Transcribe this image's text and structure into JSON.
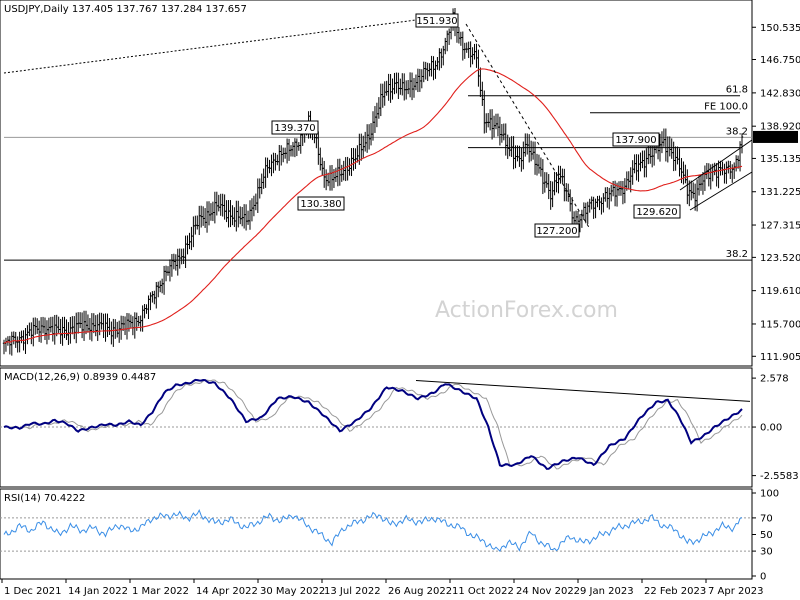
{
  "chart_data": [
    {
      "type": "candlestick",
      "panel": "price",
      "title": "USDJPY,Daily  137.405 137.767 137.284 137.657",
      "watermark": "ActionForex.com",
      "ylim": [
        111.0,
        153.5
      ],
      "yticks": [
        "150.535",
        "146.750",
        "142.830",
        "138.920",
        "135.135",
        "131.225",
        "127.315",
        "123.520",
        "119.610",
        "115.700",
        "111.905"
      ],
      "ytick_values": [
        150.535,
        146.75,
        142.83,
        138.92,
        135.135,
        131.225,
        127.315,
        123.52,
        119.61,
        115.7,
        111.905
      ],
      "last_price_label": "137.657",
      "last_price": 137.657,
      "xticks": [
        "1 Dec 2021",
        "14 Jan 2022",
        "1 Mar 2022",
        "14 Apr 2022",
        "30 May 2022",
        "13 Jul 2022",
        "26 Aug 2022",
        "11 Oct 2022",
        "24 Nov 2022",
        "9 Jan 2023",
        "22 Feb 2023",
        "7 Apr 2023"
      ],
      "close_series_anchors": [
        [
          0,
          113.2
        ],
        [
          10,
          114.3
        ],
        [
          20,
          115.4
        ],
        [
          28,
          114.8
        ],
        [
          35,
          115.2
        ],
        [
          45,
          115.6
        ],
        [
          55,
          115.0
        ],
        [
          62,
          115.4
        ],
        [
          70,
          116.5
        ],
        [
          75,
          118.5
        ],
        [
          82,
          121.5
        ],
        [
          90,
          123.5
        ],
        [
          96,
          126.0
        ],
        [
          100,
          128.0
        ],
        [
          110,
          129.5
        ],
        [
          118,
          128.3
        ],
        [
          124,
          127.8
        ],
        [
          128,
          130.0
        ],
        [
          135,
          134.0
        ],
        [
          140,
          135.5
        ],
        [
          146,
          136.0
        ],
        [
          150,
          137.0
        ],
        [
          156,
          139.2
        ],
        [
          160,
          137.0
        ],
        [
          164,
          133.0
        ],
        [
          168,
          132.5
        ],
        [
          172,
          133.5
        ],
        [
          180,
          135.0
        ],
        [
          188,
          138.5
        ],
        [
          195,
          143.0
        ],
        [
          200,
          144.0
        ],
        [
          205,
          143.0
        ],
        [
          212,
          144.5
        ],
        [
          220,
          146.0
        ],
        [
          226,
          148.5
        ],
        [
          230,
          151.5
        ],
        [
          234,
          149.0
        ],
        [
          238,
          147.5
        ],
        [
          242,
          146.8
        ],
        [
          246,
          140.0
        ],
        [
          250,
          139.0
        ],
        [
          255,
          138.0
        ],
        [
          260,
          136.0
        ],
        [
          264,
          134.5
        ],
        [
          268,
          137.0
        ],
        [
          272,
          135.0
        ],
        [
          276,
          132.5
        ],
        [
          280,
          131.0
        ],
        [
          284,
          133.5
        ],
        [
          288,
          131.0
        ],
        [
          292,
          128.0
        ],
        [
          296,
          128.5
        ],
        [
          300,
          129.5
        ],
        [
          306,
          130.5
        ],
        [
          312,
          131.0
        ],
        [
          318,
          132.0
        ],
        [
          322,
          133.5
        ],
        [
          326,
          134.5
        ],
        [
          330,
          135.5
        ],
        [
          334,
          136.0
        ],
        [
          338,
          137.0
        ],
        [
          342,
          136.0
        ],
        [
          346,
          134.0
        ],
        [
          350,
          131.5
        ],
        [
          354,
          131.0
        ],
        [
          358,
          132.5
        ],
        [
          362,
          133.5
        ],
        [
          366,
          134.0
        ],
        [
          370,
          133.5
        ],
        [
          374,
          134.0
        ],
        [
          378,
          137.7
        ]
      ],
      "overlays": [
        {
          "label": "151.930",
          "value": 151.93
        },
        {
          "label": "139.370",
          "value": 139.37
        },
        {
          "label": "130.380",
          "value": 130.38
        },
        {
          "label": "137.900",
          "value": 137.9
        },
        {
          "label": "127.200",
          "value": 127.2
        },
        {
          "label": "129.620",
          "value": 129.62
        }
      ],
      "levels": [
        {
          "label": "61.8",
          "value": 142.5
        },
        {
          "label": "FE 100.0",
          "value": 140.5
        },
        {
          "label": "38.2",
          "value": 137.6
        },
        {
          "label": "38.2",
          "value": 123.2
        }
      ],
      "sma_name": "SMA"
    },
    {
      "type": "line",
      "panel": "macd",
      "title": "MACD(12,26,9) 0.8939 0.4487",
      "ylim": [
        -3.0,
        2.9
      ],
      "yticks": [
        "2.578",
        "0.00",
        "-2.5583"
      ],
      "ytick_values": [
        2.578,
        0.0,
        -2.5583
      ],
      "anchors_macd": [
        [
          0,
          0.0
        ],
        [
          8,
          -0.05
        ],
        [
          14,
          0.2
        ],
        [
          20,
          0.15
        ],
        [
          26,
          0.35
        ],
        [
          32,
          0.2
        ],
        [
          38,
          -0.2
        ],
        [
          44,
          -0.05
        ],
        [
          52,
          0.15
        ],
        [
          58,
          0.1
        ],
        [
          64,
          0.3
        ],
        [
          70,
          0.1
        ],
        [
          76,
          0.8
        ],
        [
          82,
          1.8
        ],
        [
          88,
          2.2
        ],
        [
          94,
          2.3
        ],
        [
          100,
          2.5
        ],
        [
          108,
          2.3
        ],
        [
          116,
          1.5
        ],
        [
          124,
          0.3
        ],
        [
          132,
          0.5
        ],
        [
          140,
          1.5
        ],
        [
          148,
          1.6
        ],
        [
          156,
          1.3
        ],
        [
          164,
          0.6
        ],
        [
          172,
          -0.2
        ],
        [
          180,
          0.3
        ],
        [
          188,
          1.0
        ],
        [
          196,
          2.1
        ],
        [
          204,
          1.9
        ],
        [
          212,
          1.5
        ],
        [
          220,
          1.8
        ],
        [
          226,
          2.3
        ],
        [
          234,
          1.9
        ],
        [
          242,
          1.5
        ],
        [
          248,
          0.0
        ],
        [
          254,
          -2.0
        ],
        [
          262,
          -2.0
        ],
        [
          270,
          -1.5
        ],
        [
          278,
          -2.2
        ],
        [
          286,
          -1.8
        ],
        [
          294,
          -1.6
        ],
        [
          302,
          -2.0
        ],
        [
          310,
          -1.0
        ],
        [
          318,
          -0.6
        ],
        [
          326,
          0.5
        ],
        [
          334,
          1.3
        ],
        [
          340,
          1.4
        ],
        [
          346,
          0.5
        ],
        [
          352,
          -0.8
        ],
        [
          358,
          -0.5
        ],
        [
          364,
          0.0
        ],
        [
          370,
          0.4
        ],
        [
          378,
          0.9
        ]
      ],
      "anchors_signal_offset": 5
    },
    {
      "type": "line",
      "panel": "rsi",
      "title": "RSI(14) 70.4222",
      "ylim": [
        0,
        100
      ],
      "yticks": [
        "100",
        "70",
        "50",
        "30",
        "0"
      ],
      "ytick_values": [
        100,
        70,
        50,
        30,
        0
      ],
      "anchors_rsi": [
        [
          0,
          48
        ],
        [
          8,
          60
        ],
        [
          14,
          55
        ],
        [
          20,
          65
        ],
        [
          28,
          50
        ],
        [
          34,
          60
        ],
        [
          40,
          55
        ],
        [
          46,
          58
        ],
        [
          52,
          50
        ],
        [
          58,
          62
        ],
        [
          64,
          55
        ],
        [
          70,
          58
        ],
        [
          76,
          70
        ],
        [
          82,
          72
        ],
        [
          88,
          74
        ],
        [
          94,
          70
        ],
        [
          100,
          75
        ],
        [
          108,
          64
        ],
        [
          116,
          68
        ],
        [
          124,
          58
        ],
        [
          130,
          65
        ],
        [
          136,
          72
        ],
        [
          142,
          66
        ],
        [
          148,
          74
        ],
        [
          156,
          60
        ],
        [
          162,
          50
        ],
        [
          168,
          40
        ],
        [
          174,
          58
        ],
        [
          180,
          64
        ],
        [
          186,
          70
        ],
        [
          192,
          74
        ],
        [
          198,
          62
        ],
        [
          206,
          68
        ],
        [
          214,
          65
        ],
        [
          220,
          70
        ],
        [
          226,
          64
        ],
        [
          234,
          58
        ],
        [
          240,
          48
        ],
        [
          246,
          42
        ],
        [
          252,
          30
        ],
        [
          258,
          40
        ],
        [
          264,
          35
        ],
        [
          270,
          52
        ],
        [
          276,
          38
        ],
        [
          282,
          32
        ],
        [
          290,
          48
        ],
        [
          296,
          40
        ],
        [
          302,
          45
        ],
        [
          308,
          52
        ],
        [
          314,
          58
        ],
        [
          320,
          62
        ],
        [
          326,
          66
        ],
        [
          332,
          70
        ],
        [
          338,
          60
        ],
        [
          344,
          56
        ],
        [
          350,
          40
        ],
        [
          356,
          44
        ],
        [
          362,
          52
        ],
        [
          368,
          60
        ],
        [
          374,
          58
        ],
        [
          378,
          70.4
        ]
      ]
    }
  ]
}
